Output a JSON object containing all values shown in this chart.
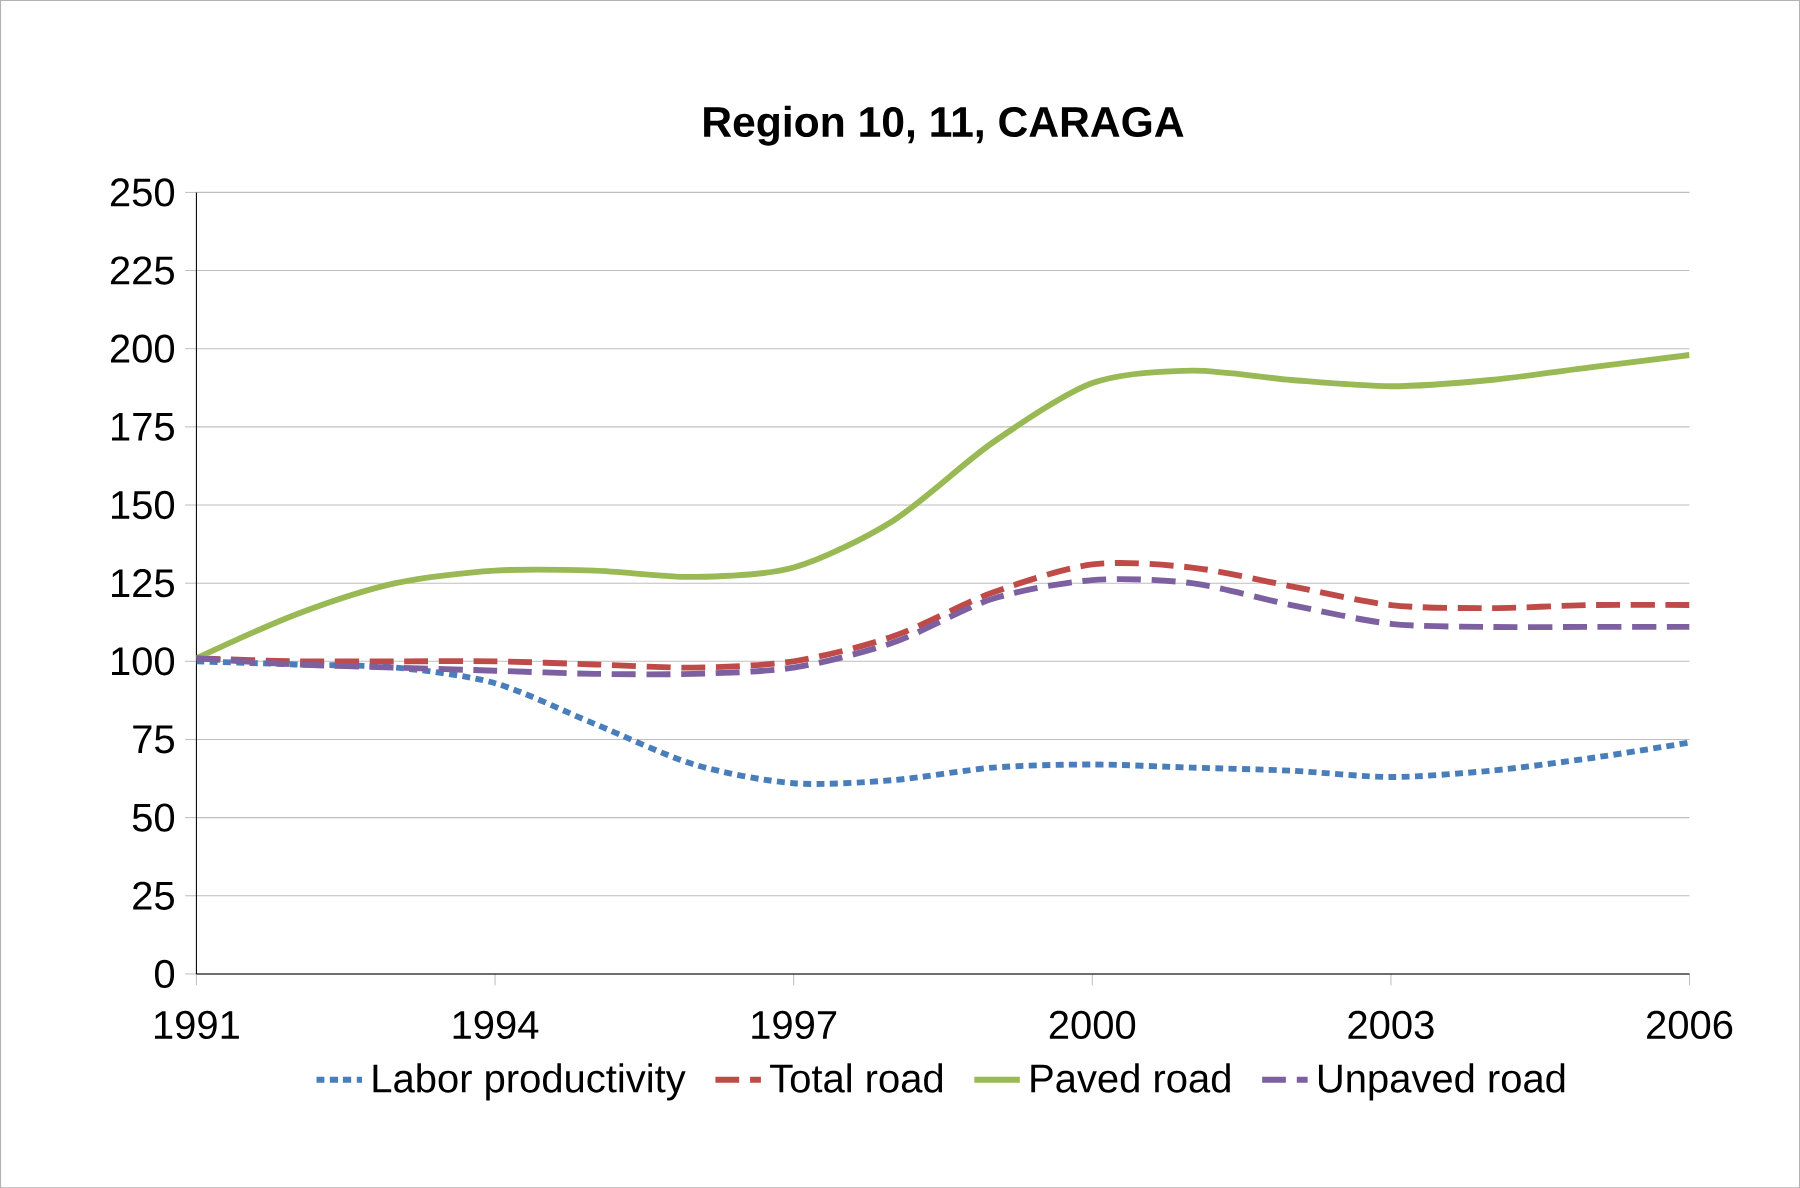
{
  "chart_data": {
    "type": "line",
    "title": "Region 10, 11, CARAGA",
    "x": [
      1991,
      1992,
      1993,
      1994,
      1995,
      1996,
      1997,
      1998,
      1999,
      2000,
      2001,
      2002,
      2003,
      2004,
      2005,
      2006
    ],
    "series": [
      {
        "name": "Labor productivity",
        "color": "#4a7ebb",
        "line_style": "dotted",
        "values": [
          100,
          99,
          98,
          93,
          80,
          67,
          61,
          62,
          66,
          67,
          66,
          65,
          63,
          65,
          69,
          74
        ]
      },
      {
        "name": "Total road",
        "color": "#be4b48",
        "line_style": "dashed",
        "values": [
          101,
          100,
          100,
          100,
          99,
          98,
          100,
          108,
          122,
          131,
          130,
          124,
          118,
          117,
          118,
          118
        ]
      },
      {
        "name": "Paved road",
        "color": "#98b954",
        "line_style": "solid",
        "values": [
          101,
          115,
          125,
          129,
          129,
          127,
          130,
          145,
          170,
          189,
          193,
          190,
          188,
          190,
          194,
          198
        ]
      },
      {
        "name": "Unpaved road",
        "color": "#7d60a0",
        "line_style": "dashed",
        "values": [
          101,
          99,
          98,
          97,
          96,
          96,
          98,
          106,
          120,
          126,
          125,
          118,
          112,
          111,
          111,
          111
        ]
      }
    ],
    "xlim": [
      1991,
      2006
    ],
    "xticks": [
      1991,
      1994,
      1997,
      2000,
      2003,
      2006
    ],
    "ylim": [
      0,
      250
    ],
    "yticks": [
      0,
      25,
      50,
      75,
      100,
      125,
      150,
      175,
      200,
      225,
      250
    ],
    "grid": "y",
    "legend": "bottom",
    "marker": "none"
  }
}
